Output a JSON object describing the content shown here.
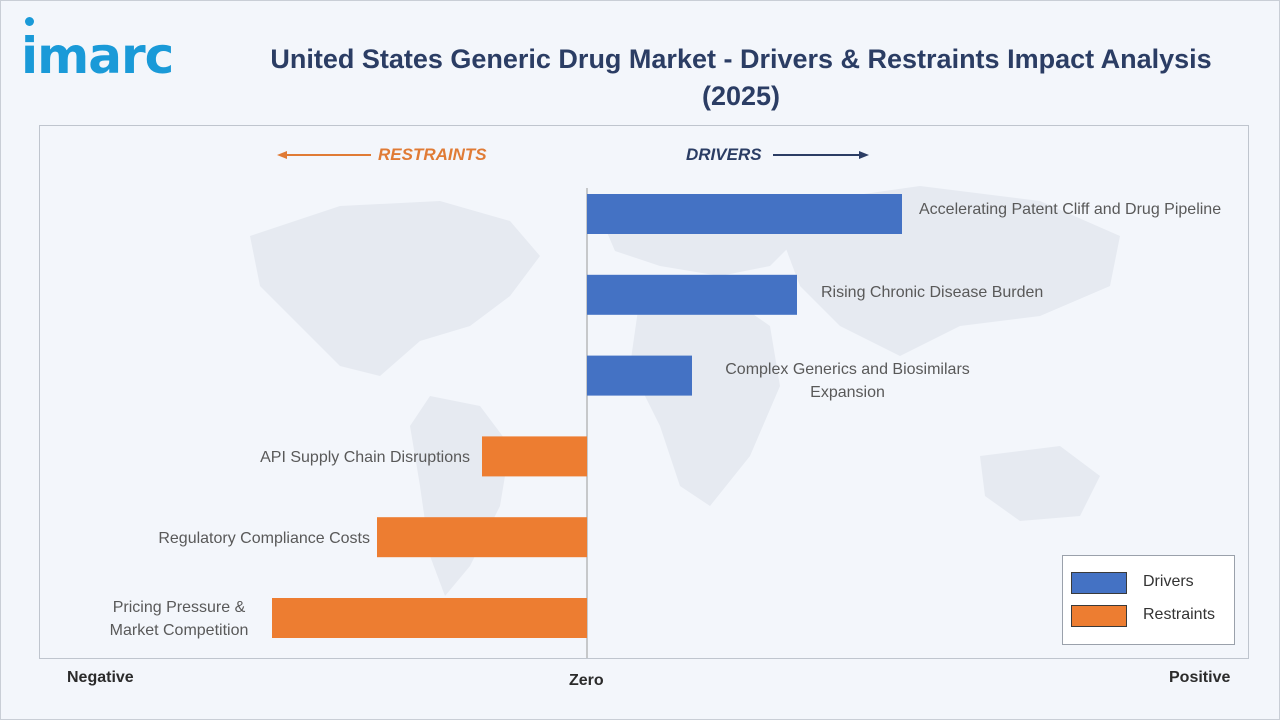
{
  "brand": {
    "logo_text": "imarc",
    "color": "#1a9ad8"
  },
  "title": "United States Generic Drug Market - Drivers & Restraints Impact Analysis (2025)",
  "direction_labels": {
    "restraints": "RESTRAINTS",
    "drivers": "DRIVERS"
  },
  "axis_words": {
    "negative": "Negative",
    "zero": "Zero",
    "positive": "Positive"
  },
  "colors": {
    "drivers": "#4472c4",
    "restraints": "#ed7d31",
    "title": "#2b3d64"
  },
  "legend": [
    {
      "label": "Drivers",
      "color": "#4472c4"
    },
    {
      "label": "Restraints",
      "color": "#ed7d31"
    }
  ],
  "chart_data": {
    "type": "bar",
    "orientation": "horizontal",
    "title": "United States Generic Drug Market - Drivers & Restraints Impact Analysis (2025)",
    "xlabel": "",
    "ylabel": "",
    "x_axis_words": [
      "Negative",
      "Zero",
      "Positive"
    ],
    "xlim": [
      -3,
      3
    ],
    "grid": false,
    "legend_position": "bottom-right",
    "categories": [
      "Accelerating Patent Cliff and Drug Pipeline",
      "Rising Chronic Disease Burden",
      "Complex Generics and Biosimilars Expansion",
      "API Supply Chain Disruptions",
      "Regulatory Compliance Costs",
      "Pricing Pressure & Market Competition"
    ],
    "series": [
      {
        "name": "Drivers",
        "values": [
          3,
          2,
          1,
          null,
          null,
          null
        ],
        "color": "#4472c4"
      },
      {
        "name": "Restraints",
        "values": [
          null,
          null,
          null,
          -1,
          -2,
          -3
        ],
        "color": "#ed7d31"
      }
    ]
  }
}
